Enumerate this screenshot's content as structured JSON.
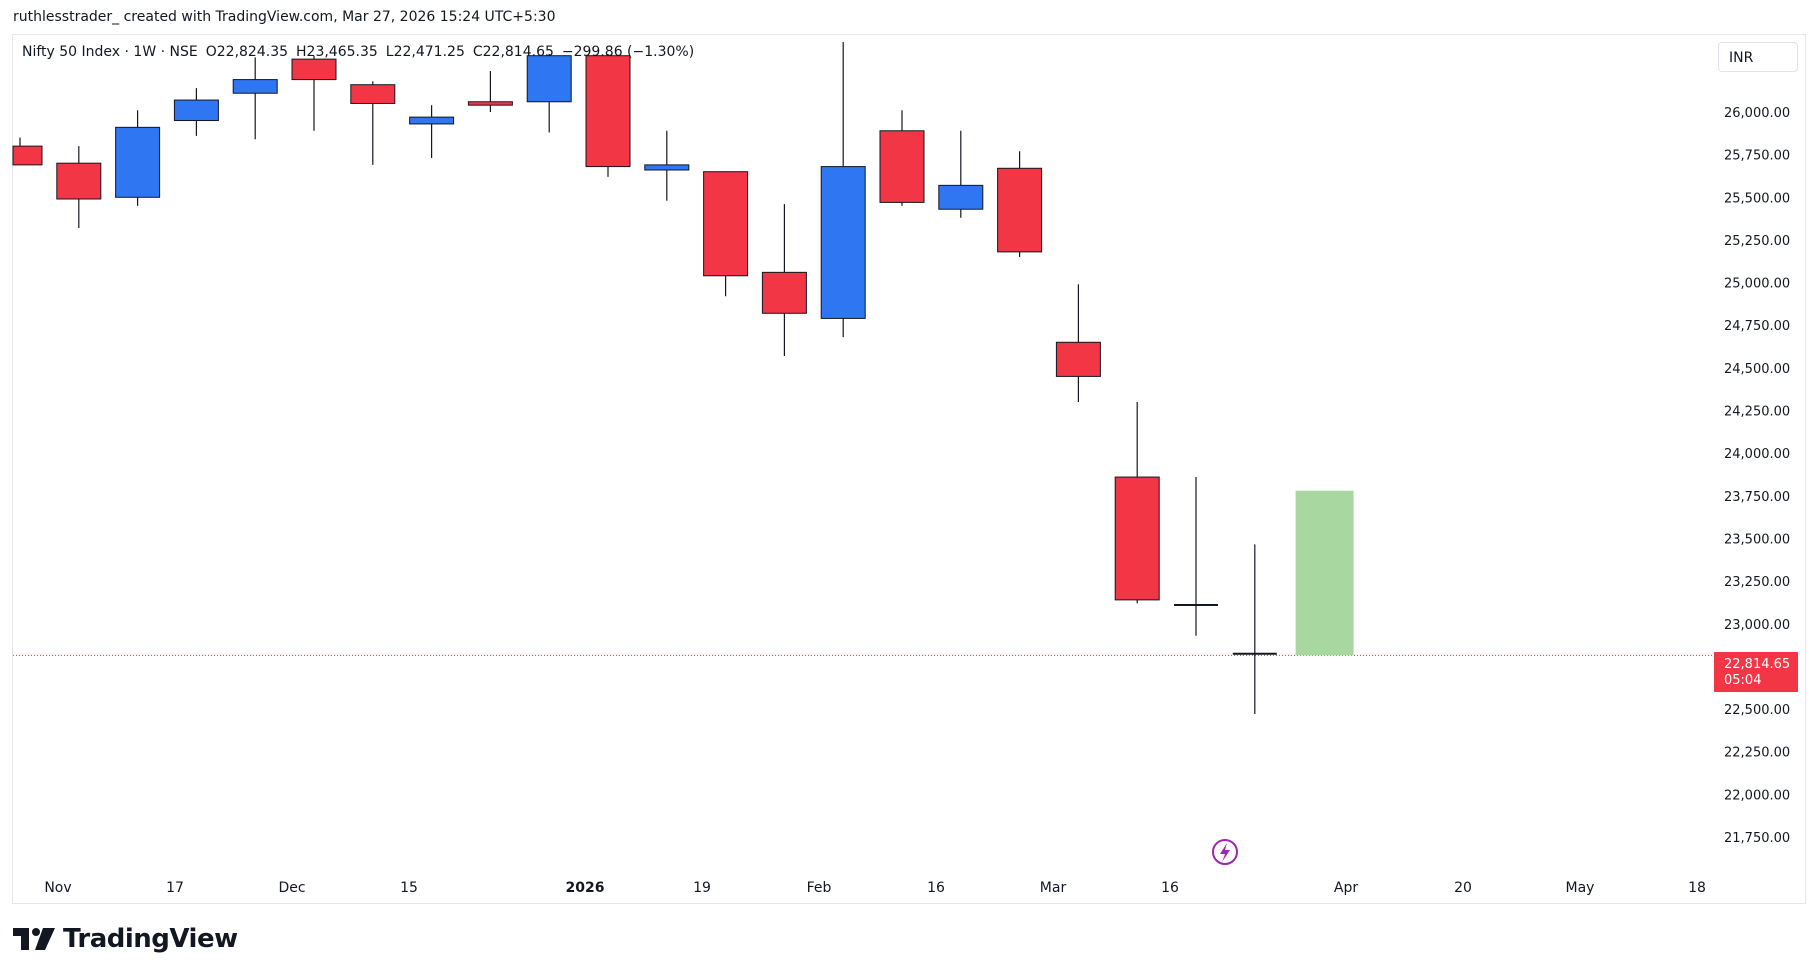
{
  "credit": "ruthlesstrader_ created with TradingView.com, Mar 27, 2026 15:24 UTC+5:30",
  "legend": {
    "symbol": "Nifty 50 Index · 1W · NSE",
    "open": "O22,824.35",
    "high": "H23,465.35",
    "low": "L22,471.25",
    "close": "C22,814.65",
    "change": "−299.86 (−1.30%)"
  },
  "currency": "INR",
  "last_price": {
    "value": "22,814.65",
    "countdown": "05:04"
  },
  "logo_text": "TradingView",
  "colors": {
    "up": "#2f76f2",
    "down": "#f23645",
    "projection": "#a8d8a0",
    "price_line": "#f23645",
    "lightning": "#9c27b0"
  },
  "chart_data": {
    "type": "candlestick",
    "x_ticks": [
      "Nov",
      "17",
      "Dec",
      "15",
      "2026",
      "19",
      "Feb",
      "16",
      "Mar",
      "16",
      "Apr",
      "20",
      "May",
      "18"
    ],
    "y_ticks": [
      "26,000.00",
      "25,750.00",
      "25,500.00",
      "25,250.00",
      "25,000.00",
      "24,750.00",
      "24,500.00",
      "24,250.00",
      "24,000.00",
      "23,750.00",
      "23,500.00",
      "23,250.00",
      "23,000.00",
      "22,500.00",
      "22,250.00",
      "22,000.00",
      "21,750.00"
    ],
    "ylim": [
      21650,
      26450
    ],
    "candles": [
      {
        "week": "Oct 27",
        "open": 25800,
        "high": 25850,
        "low": 25690,
        "close": 25690
      },
      {
        "week": "Nov 3",
        "open": 25700,
        "high": 25800,
        "low": 25320,
        "close": 25490
      },
      {
        "week": "Nov 10",
        "open": 25500,
        "high": 26010,
        "low": 25450,
        "close": 25910
      },
      {
        "week": "Nov 17",
        "open": 25950,
        "high": 26140,
        "low": 25860,
        "close": 26070
      },
      {
        "week": "Nov 24",
        "open": 26110,
        "high": 26320,
        "low": 25840,
        "close": 26190
      },
      {
        "week": "Dec 1",
        "open": 26310,
        "high": 26330,
        "low": 25890,
        "close": 26190
      },
      {
        "week": "Dec 8",
        "open": 26160,
        "high": 26180,
        "low": 25690,
        "close": 26050
      },
      {
        "week": "Dec 15",
        "open": 25930,
        "high": 26040,
        "low": 25730,
        "close": 25970
      },
      {
        "week": "Dec 22",
        "open": 26060,
        "high": 26240,
        "low": 26000,
        "close": 26040
      },
      {
        "week": "Dec 29",
        "open": 26060,
        "high": 26340,
        "low": 25880,
        "close": 26330
      },
      {
        "week": "Jan 5",
        "open": 26330,
        "high": 26340,
        "low": 25620,
        "close": 25680
      },
      {
        "week": "Jan 12",
        "open": 25660,
        "high": 25890,
        "low": 25480,
        "close": 25690
      },
      {
        "week": "Jan 19",
        "open": 25650,
        "high": 25650,
        "low": 24920,
        "close": 25040
      },
      {
        "week": "Jan 26",
        "open": 25060,
        "high": 25460,
        "low": 24570,
        "close": 24820
      },
      {
        "week": "Feb 2",
        "open": 24790,
        "high": 26410,
        "low": 24680,
        "close": 25680
      },
      {
        "week": "Feb 9",
        "open": 25890,
        "high": 26010,
        "low": 25450,
        "close": 25470
      },
      {
        "week": "Feb 16",
        "open": 25430,
        "high": 25890,
        "low": 25380,
        "close": 25570
      },
      {
        "week": "Feb 23",
        "open": 25670,
        "high": 25770,
        "low": 25150,
        "close": 25180
      },
      {
        "week": "Mar 2",
        "open": 24650,
        "high": 24990,
        "low": 24300,
        "close": 24450
      },
      {
        "week": "Mar 9",
        "open": 23860,
        "high": 24300,
        "low": 23120,
        "close": 23140
      },
      {
        "week": "Mar 16",
        "open": 23110,
        "high": 23860,
        "low": 22930,
        "close": 23110
      },
      {
        "week": "Mar 23",
        "open": 22824.35,
        "high": 23465.35,
        "low": 22471.25,
        "close": 22814.65
      }
    ],
    "projection_zone": {
      "low": 22814.65,
      "high": 23780,
      "week": "Mar 30"
    },
    "last_price": 22814.65
  }
}
